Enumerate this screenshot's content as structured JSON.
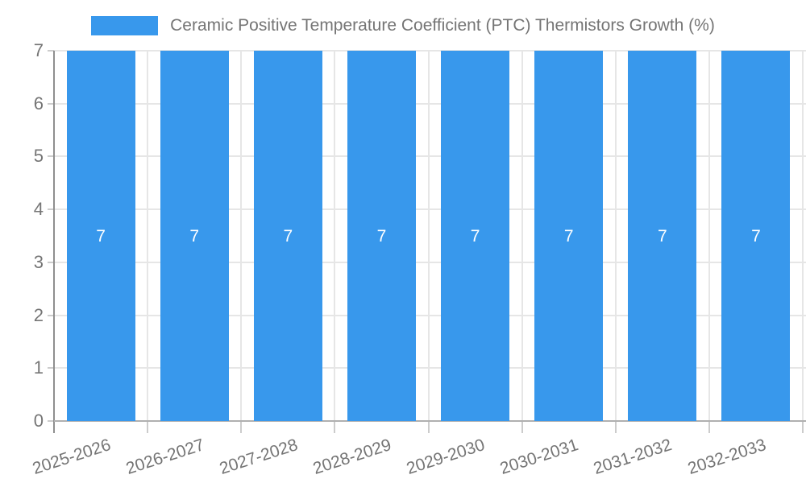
{
  "chart_data": {
    "type": "bar",
    "title": "Ceramic Positive Temperature Coefficient (PTC) Thermistors Growth (%)",
    "legend": {
      "position": "top",
      "entries": [
        "Ceramic Positive Temperature Coefficient (PTC) Thermistors Growth (%)"
      ]
    },
    "categories": [
      "2025-2026",
      "2026-2027",
      "2027-2028",
      "2028-2029",
      "2029-2030",
      "2030-2031",
      "2031-2032",
      "2032-2033"
    ],
    "series": [
      {
        "name": "Ceramic Positive Temperature Coefficient (PTC) Thermistors Growth (%)",
        "values": [
          7,
          7,
          7,
          7,
          7,
          7,
          7,
          7
        ]
      }
    ],
    "bar_value_labels": [
      "7",
      "7",
      "7",
      "7",
      "7",
      "7",
      "7",
      "7"
    ],
    "xlabel": "",
    "ylabel": "",
    "ylim": [
      0,
      7
    ],
    "yticks": [
      "0",
      "1",
      "2",
      "3",
      "4",
      "5",
      "6",
      "7"
    ],
    "grid": true,
    "colors": {
      "bar": "#3898ec",
      "bar_label": "#ffffff",
      "axis_line": "#8f8f8f",
      "bottom_axis_line": "#b0b0b0",
      "gridline": "#e6e6e6",
      "tick_mark": "#cccccc",
      "tick_text": "#757575",
      "legend_text": "#757575"
    }
  }
}
